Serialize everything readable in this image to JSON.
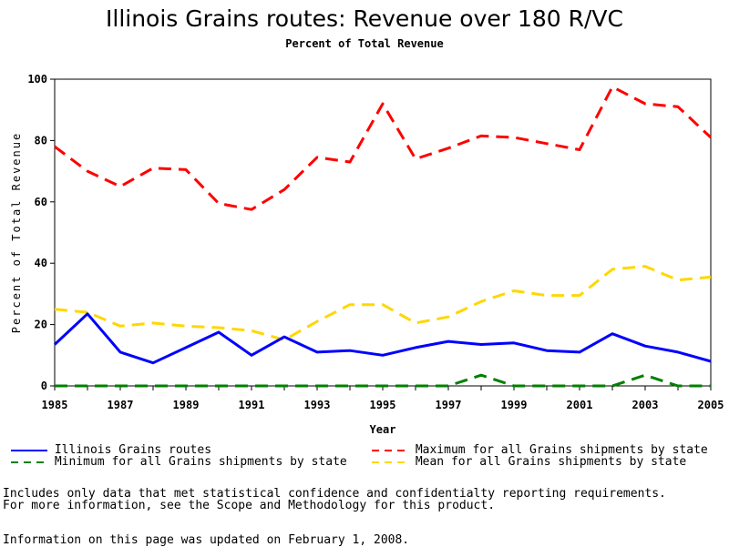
{
  "chart_data": {
    "type": "line",
    "title": "Illinois Grains routes: Revenue over 180 R/VC",
    "subtitle": "Percent of Total Revenue",
    "xlabel": "Year",
    "ylabel": "Percent of Total Revenue",
    "xlim": [
      1985,
      2005
    ],
    "ylim": [
      0,
      100
    ],
    "x_ticks": [
      "1985",
      "1987",
      "1989",
      "1991",
      "1993",
      "1995",
      "1997",
      "1999",
      "2001",
      "2003",
      "2005"
    ],
    "y_ticks": [
      "0",
      "20",
      "40",
      "60",
      "80",
      "100"
    ],
    "x": [
      1985,
      1986,
      1987,
      1988,
      1989,
      1990,
      1991,
      1992,
      1993,
      1994,
      1995,
      1996,
      1997,
      1998,
      1999,
      2000,
      2001,
      2002,
      2003,
      2004,
      2005
    ],
    "series": [
      {
        "name": "Illinois Grains routes",
        "color": "#0000ff",
        "style": "solid",
        "values": [
          13.5,
          23.5,
          11,
          7.5,
          12.5,
          17.5,
          10,
          16,
          11,
          11.5,
          10,
          12.5,
          14.5,
          13.5,
          14,
          11.5,
          11,
          17,
          13,
          11,
          8
        ]
      },
      {
        "name": "Maximum for all Grains shipments by state",
        "color": "#ff0000",
        "style": "dashed",
        "values": [
          78,
          70,
          65,
          71,
          70.5,
          59.5,
          57.5,
          64,
          74.5,
          73,
          92,
          74,
          77.5,
          81.5,
          81,
          79,
          77,
          97.5,
          92,
          91,
          81
        ]
      },
      {
        "name": "Minimum for all Grains shipments by state",
        "color": "#008000",
        "style": "dashed",
        "values": [
          0,
          0,
          0,
          0,
          0,
          0,
          0,
          0,
          0,
          0,
          0,
          0,
          0,
          3.5,
          0,
          0,
          0,
          0,
          3.5,
          0,
          0
        ]
      },
      {
        "name": "Mean for all Grains shipments by state",
        "color": "#ffd700",
        "style": "dashed",
        "values": [
          25,
          24,
          19.5,
          20.5,
          19.5,
          19,
          18,
          15,
          21,
          26.5,
          26.5,
          20.5,
          22.5,
          27.5,
          31,
          29.5,
          29.5,
          38,
          39,
          34.5,
          35.5
        ]
      }
    ],
    "grid": false,
    "legend_position": "bottom"
  },
  "notes": {
    "line1": "Includes only data that met statistical confidence and confidentialty reporting requirements.",
    "line2": "For more information, see the Scope and Methodology for this product.",
    "updated": "Information on this page was updated on February 1, 2008."
  }
}
